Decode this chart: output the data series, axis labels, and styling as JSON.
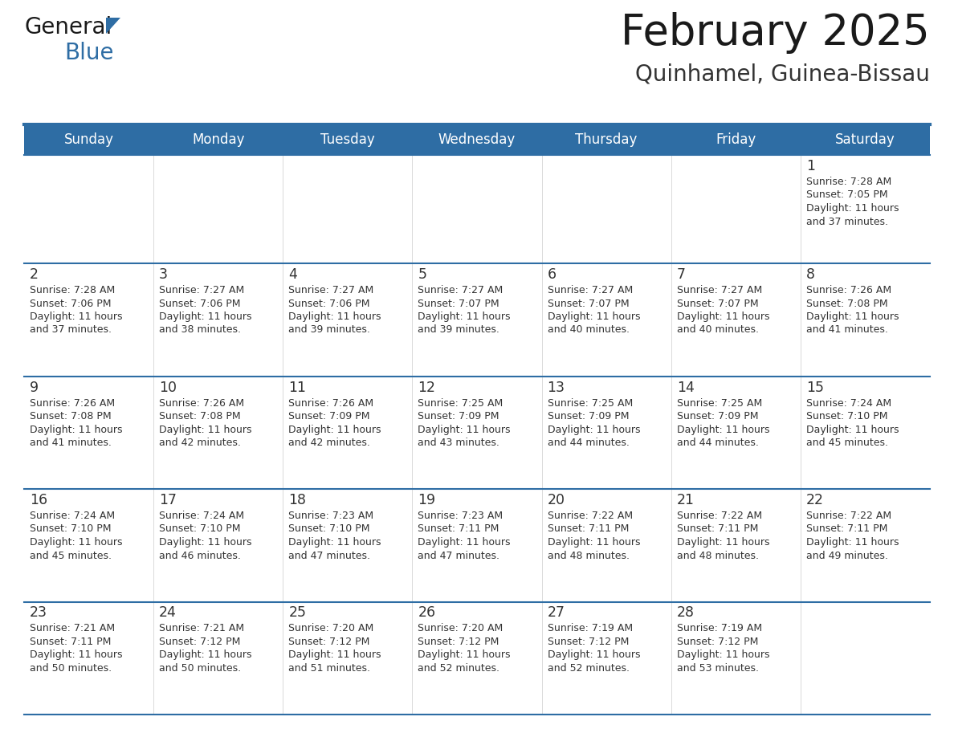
{
  "title": "February 2025",
  "subtitle": "Quinhamel, Guinea-Bissau",
  "header_bg": "#2E6DA4",
  "header_text_color": "#FFFFFF",
  "cell_bg": "#FFFFFF",
  "row1_bg": "#F0F0F0",
  "border_color": "#2E6DA4",
  "day_names": [
    "Sunday",
    "Monday",
    "Tuesday",
    "Wednesday",
    "Thursday",
    "Friday",
    "Saturday"
  ],
  "title_color": "#1a1a1a",
  "subtitle_color": "#333333",
  "number_color": "#333333",
  "info_color": "#333333",
  "logo_black": "#1a1a1a",
  "logo_blue": "#2E6DA4",
  "calendar": [
    [
      null,
      null,
      null,
      null,
      null,
      null,
      {
        "day": "1",
        "sunrise": "7:28 AM",
        "sunset": "7:05 PM",
        "daylight_line1": "Daylight: 11 hours",
        "daylight_line2": "and 37 minutes."
      }
    ],
    [
      {
        "day": "2",
        "sunrise": "7:28 AM",
        "sunset": "7:06 PM",
        "daylight_line1": "Daylight: 11 hours",
        "daylight_line2": "and 37 minutes."
      },
      {
        "day": "3",
        "sunrise": "7:27 AM",
        "sunset": "7:06 PM",
        "daylight_line1": "Daylight: 11 hours",
        "daylight_line2": "and 38 minutes."
      },
      {
        "day": "4",
        "sunrise": "7:27 AM",
        "sunset": "7:06 PM",
        "daylight_line1": "Daylight: 11 hours",
        "daylight_line2": "and 39 minutes."
      },
      {
        "day": "5",
        "sunrise": "7:27 AM",
        "sunset": "7:07 PM",
        "daylight_line1": "Daylight: 11 hours",
        "daylight_line2": "and 39 minutes."
      },
      {
        "day": "6",
        "sunrise": "7:27 AM",
        "sunset": "7:07 PM",
        "daylight_line1": "Daylight: 11 hours",
        "daylight_line2": "and 40 minutes."
      },
      {
        "day": "7",
        "sunrise": "7:27 AM",
        "sunset": "7:07 PM",
        "daylight_line1": "Daylight: 11 hours",
        "daylight_line2": "and 40 minutes."
      },
      {
        "day": "8",
        "sunrise": "7:26 AM",
        "sunset": "7:08 PM",
        "daylight_line1": "Daylight: 11 hours",
        "daylight_line2": "and 41 minutes."
      }
    ],
    [
      {
        "day": "9",
        "sunrise": "7:26 AM",
        "sunset": "7:08 PM",
        "daylight_line1": "Daylight: 11 hours",
        "daylight_line2": "and 41 minutes."
      },
      {
        "day": "10",
        "sunrise": "7:26 AM",
        "sunset": "7:08 PM",
        "daylight_line1": "Daylight: 11 hours",
        "daylight_line2": "and 42 minutes."
      },
      {
        "day": "11",
        "sunrise": "7:26 AM",
        "sunset": "7:09 PM",
        "daylight_line1": "Daylight: 11 hours",
        "daylight_line2": "and 42 minutes."
      },
      {
        "day": "12",
        "sunrise": "7:25 AM",
        "sunset": "7:09 PM",
        "daylight_line1": "Daylight: 11 hours",
        "daylight_line2": "and 43 minutes."
      },
      {
        "day": "13",
        "sunrise": "7:25 AM",
        "sunset": "7:09 PM",
        "daylight_line1": "Daylight: 11 hours",
        "daylight_line2": "and 44 minutes."
      },
      {
        "day": "14",
        "sunrise": "7:25 AM",
        "sunset": "7:09 PM",
        "daylight_line1": "Daylight: 11 hours",
        "daylight_line2": "and 44 minutes."
      },
      {
        "day": "15",
        "sunrise": "7:24 AM",
        "sunset": "7:10 PM",
        "daylight_line1": "Daylight: 11 hours",
        "daylight_line2": "and 45 minutes."
      }
    ],
    [
      {
        "day": "16",
        "sunrise": "7:24 AM",
        "sunset": "7:10 PM",
        "daylight_line1": "Daylight: 11 hours",
        "daylight_line2": "and 45 minutes."
      },
      {
        "day": "17",
        "sunrise": "7:24 AM",
        "sunset": "7:10 PM",
        "daylight_line1": "Daylight: 11 hours",
        "daylight_line2": "and 46 minutes."
      },
      {
        "day": "18",
        "sunrise": "7:23 AM",
        "sunset": "7:10 PM",
        "daylight_line1": "Daylight: 11 hours",
        "daylight_line2": "and 47 minutes."
      },
      {
        "day": "19",
        "sunrise": "7:23 AM",
        "sunset": "7:11 PM",
        "daylight_line1": "Daylight: 11 hours",
        "daylight_line2": "and 47 minutes."
      },
      {
        "day": "20",
        "sunrise": "7:22 AM",
        "sunset": "7:11 PM",
        "daylight_line1": "Daylight: 11 hours",
        "daylight_line2": "and 48 minutes."
      },
      {
        "day": "21",
        "sunrise": "7:22 AM",
        "sunset": "7:11 PM",
        "daylight_line1": "Daylight: 11 hours",
        "daylight_line2": "and 48 minutes."
      },
      {
        "day": "22",
        "sunrise": "7:22 AM",
        "sunset": "7:11 PM",
        "daylight_line1": "Daylight: 11 hours",
        "daylight_line2": "and 49 minutes."
      }
    ],
    [
      {
        "day": "23",
        "sunrise": "7:21 AM",
        "sunset": "7:11 PM",
        "daylight_line1": "Daylight: 11 hours",
        "daylight_line2": "and 50 minutes."
      },
      {
        "day": "24",
        "sunrise": "7:21 AM",
        "sunset": "7:12 PM",
        "daylight_line1": "Daylight: 11 hours",
        "daylight_line2": "and 50 minutes."
      },
      {
        "day": "25",
        "sunrise": "7:20 AM",
        "sunset": "7:12 PM",
        "daylight_line1": "Daylight: 11 hours",
        "daylight_line2": "and 51 minutes."
      },
      {
        "day": "26",
        "sunrise": "7:20 AM",
        "sunset": "7:12 PM",
        "daylight_line1": "Daylight: 11 hours",
        "daylight_line2": "and 52 minutes."
      },
      {
        "day": "27",
        "sunrise": "7:19 AM",
        "sunset": "7:12 PM",
        "daylight_line1": "Daylight: 11 hours",
        "daylight_line2": "and 52 minutes."
      },
      {
        "day": "28",
        "sunrise": "7:19 AM",
        "sunset": "7:12 PM",
        "daylight_line1": "Daylight: 11 hours",
        "daylight_line2": "and 53 minutes."
      },
      null
    ]
  ]
}
